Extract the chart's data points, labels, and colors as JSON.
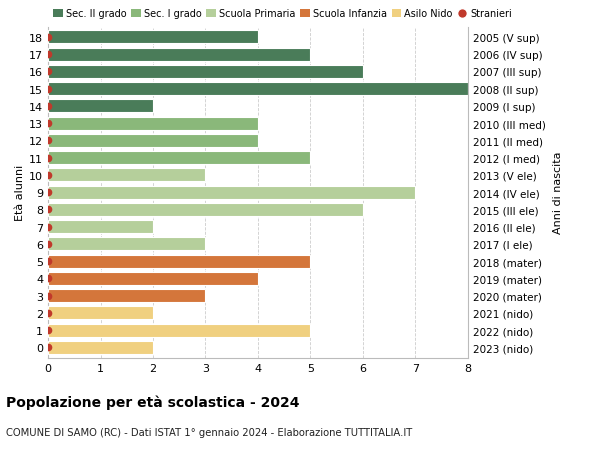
{
  "ages": [
    18,
    17,
    16,
    15,
    14,
    13,
    12,
    11,
    10,
    9,
    8,
    7,
    6,
    5,
    4,
    3,
    2,
    1,
    0
  ],
  "years": [
    "2005 (V sup)",
    "2006 (IV sup)",
    "2007 (III sup)",
    "2008 (II sup)",
    "2009 (I sup)",
    "2010 (III med)",
    "2011 (II med)",
    "2012 (I med)",
    "2013 (V ele)",
    "2014 (IV ele)",
    "2015 (III ele)",
    "2016 (II ele)",
    "2017 (I ele)",
    "2018 (mater)",
    "2019 (mater)",
    "2020 (mater)",
    "2021 (nido)",
    "2022 (nido)",
    "2023 (nido)"
  ],
  "values": [
    4,
    5,
    6,
    8,
    2,
    4,
    4,
    5,
    3,
    7,
    6,
    2,
    3,
    5,
    4,
    3,
    2,
    5,
    2
  ],
  "colors": [
    "#4a7c59",
    "#4a7c59",
    "#4a7c59",
    "#4a7c59",
    "#4a7c59",
    "#8ab87a",
    "#8ab87a",
    "#8ab87a",
    "#b5cf9b",
    "#b5cf9b",
    "#b5cf9b",
    "#b5cf9b",
    "#b5cf9b",
    "#d4763b",
    "#d4763b",
    "#d4763b",
    "#f0d080",
    "#f0d080",
    "#f0d080"
  ],
  "stranieri_color": "#c0392b",
  "legend": [
    {
      "label": "Sec. II grado",
      "color": "#4a7c59",
      "type": "patch"
    },
    {
      "label": "Sec. I grado",
      "color": "#8ab87a",
      "type": "patch"
    },
    {
      "label": "Scuola Primaria",
      "color": "#b5cf9b",
      "type": "patch"
    },
    {
      "label": "Scuola Infanzia",
      "color": "#d4763b",
      "type": "patch"
    },
    {
      "label": "Asilo Nido",
      "color": "#f0d080",
      "type": "patch"
    },
    {
      "label": "Stranieri",
      "color": "#c0392b",
      "type": "dot"
    }
  ],
  "ylabel": "Età alunni",
  "ylabel_right": "Anni di nascita",
  "title": "Popolazione per età scolastica - 2024",
  "subtitle": "COMUNE DI SAMO (RC) - Dati ISTAT 1° gennaio 2024 - Elaborazione TUTTITALIA.IT",
  "xlim": [
    0,
    8
  ],
  "bar_height": 0.75,
  "background_color": "#ffffff",
  "grid_color": "#cccccc"
}
